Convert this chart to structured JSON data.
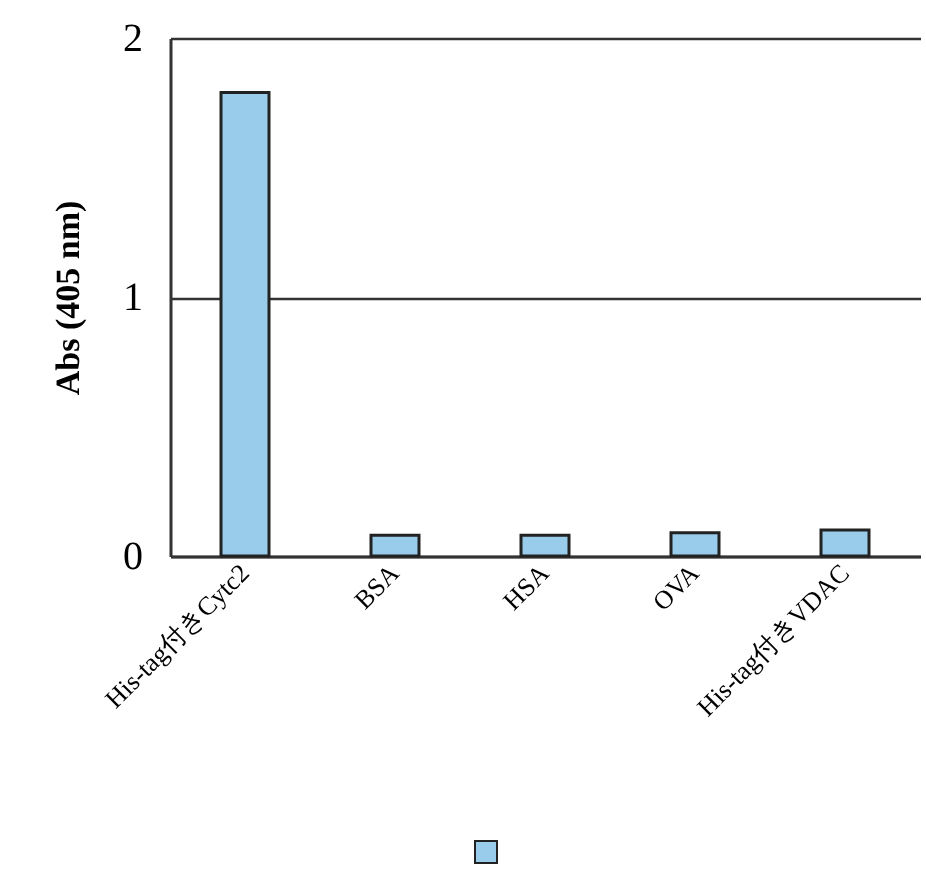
{
  "chart_data": {
    "type": "bar",
    "ylabel": "Abs (405 nm)",
    "categories": [
      "His-tag付きCytc2",
      "BSA",
      "HSA",
      "OVA",
      "His-tag付きVDAC"
    ],
    "series": [
      {
        "color": "#99cbea",
        "values": [
          1.79,
          0.08,
          0.08,
          0.09,
          0.1
        ]
      }
    ],
    "ylim": [
      0,
      2
    ],
    "yticks": [
      0,
      1,
      2
    ],
    "grid": "y"
  }
}
